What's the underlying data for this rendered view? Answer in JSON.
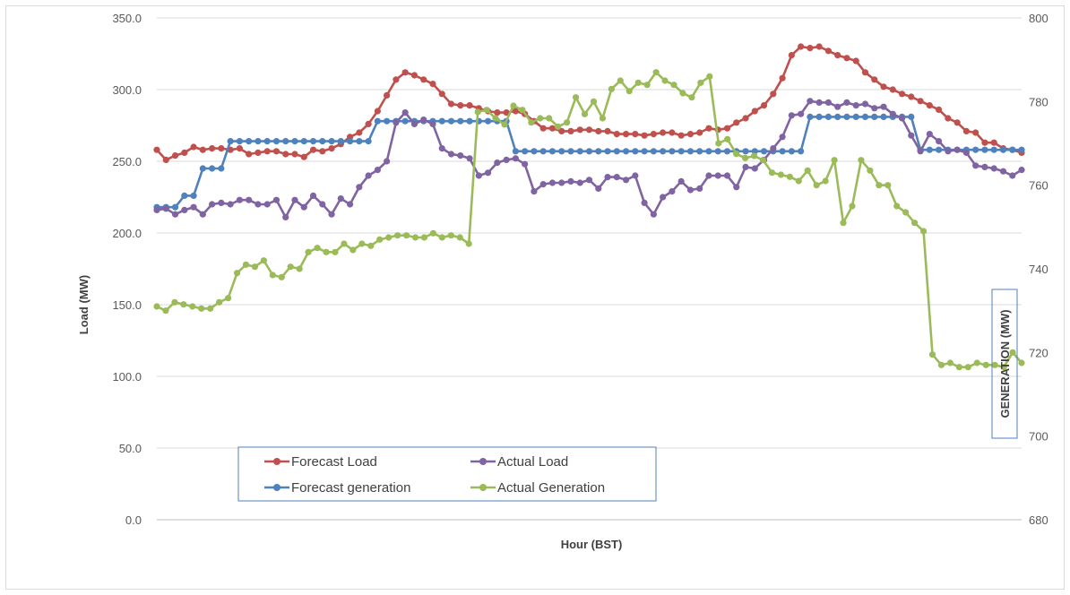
{
  "chart_data": {
    "type": "line",
    "title": "",
    "xlabel": "Hour (BST)",
    "ylabel_left": "Load (MW)",
    "ylabel_right": "GENERATION (MW)",
    "ylim_left": [
      0,
      350
    ],
    "ylim_right": [
      680,
      800
    ],
    "yticks_left": [
      "0.0",
      "50.0",
      "100.0",
      "150.0",
      "200.0",
      "250.0",
      "300.0",
      "350.0"
    ],
    "yticks_right": [
      "680",
      "700",
      "720",
      "740",
      "760",
      "780",
      "800"
    ],
    "grid": "horizontal",
    "legend_position": "bottom-left",
    "series": [
      {
        "name": "Forecast Load",
        "axis": "left",
        "color": "#c0504d",
        "values": [
          258,
          251,
          254,
          256,
          260,
          258,
          259,
          259,
          258,
          259,
          255,
          256,
          257,
          257,
          255,
          255,
          253,
          258,
          257,
          259,
          262,
          267,
          270,
          276,
          285,
          296,
          307,
          312,
          310,
          307,
          304,
          297,
          290,
          289,
          289,
          287,
          285,
          284,
          284,
          285,
          283,
          278,
          273,
          273,
          271,
          271,
          272,
          272,
          271,
          271,
          269,
          269,
          269,
          268,
          269,
          270,
          270,
          268,
          269,
          270,
          273,
          272,
          273,
          277,
          280,
          285,
          289,
          297,
          308,
          324,
          330,
          329,
          330,
          327,
          324,
          322,
          320,
          312,
          307,
          302,
          300,
          297,
          295,
          292,
          289,
          286,
          280,
          277,
          271,
          270,
          263,
          263,
          259,
          258,
          256
        ]
      },
      {
        "name": "Actual Load",
        "axis": "left",
        "color": "#8064a2",
        "values": [
          216,
          217,
          213,
          216,
          218,
          213,
          220,
          221,
          220,
          223,
          223,
          220,
          220,
          223,
          211,
          223,
          218,
          226,
          220,
          213,
          224,
          220,
          232,
          240,
          244,
          250,
          277,
          284,
          276,
          279,
          276,
          259,
          255,
          254,
          252,
          240,
          242,
          249,
          251,
          252,
          248,
          229,
          234,
          235,
          235,
          236,
          235,
          237,
          231,
          239,
          239,
          237,
          240,
          221,
          213,
          225,
          229,
          236,
          230,
          231,
          240,
          240,
          240,
          232,
          246,
          245,
          251,
          259,
          267,
          282,
          283,
          292,
          291,
          291,
          288,
          291,
          289,
          290,
          287,
          288,
          283,
          280,
          268,
          257,
          269,
          264,
          257,
          258,
          256,
          247,
          246,
          245,
          243,
          240,
          244
        ]
      },
      {
        "name": "Forecast generation",
        "axis": "left",
        "color": "#4f81bd",
        "values": [
          218,
          218,
          218,
          226,
          226,
          245,
          245,
          245,
          264,
          264,
          264,
          264,
          264,
          264,
          264,
          264,
          264,
          264,
          264,
          264,
          264,
          264,
          264,
          264,
          278,
          278,
          278,
          278,
          278,
          278,
          278,
          278,
          278,
          278,
          278,
          278,
          278,
          278,
          278,
          257,
          257,
          257,
          257,
          257,
          257,
          257,
          257,
          257,
          257,
          257,
          257,
          257,
          257,
          257,
          257,
          257,
          257,
          257,
          257,
          257,
          257,
          257,
          257,
          257,
          257,
          257,
          257,
          257,
          257,
          257,
          257,
          281,
          281,
          281,
          281,
          281,
          281,
          281,
          281,
          281,
          281,
          281,
          281,
          258,
          258,
          258,
          258,
          258,
          258,
          258,
          258,
          258,
          258,
          258,
          258
        ]
      },
      {
        "name": "Actual Generation",
        "axis": "right",
        "color": "#9bbb59",
        "values": [
          731,
          730,
          732,
          731.5,
          731,
          730.5,
          730.5,
          732,
          733,
          739,
          741,
          740.5,
          742,
          738.5,
          738,
          740.5,
          740,
          744,
          745,
          744,
          744,
          746,
          744.5,
          746,
          745.5,
          747,
          747.5,
          748,
          748,
          747.5,
          747.5,
          748.5,
          747.5,
          748,
          747.5,
          746,
          777.5,
          778,
          776,
          774.5,
          779,
          778,
          775,
          776,
          776,
          774,
          775,
          781,
          777,
          780,
          776,
          783,
          785,
          782.5,
          784.5,
          784,
          787,
          785,
          784,
          782,
          781,
          784.5,
          786,
          770,
          771,
          767.5,
          766.5,
          767,
          766,
          763,
          762.5,
          762,
          761,
          763.5,
          760,
          761,
          766,
          751,
          755,
          766,
          763.5,
          760,
          760,
          755,
          753.5,
          751,
          749,
          719.5,
          717,
          717.5,
          716.5,
          716.5,
          717.5,
          717,
          717,
          716.5,
          720,
          717.5
        ]
      }
    ]
  }
}
